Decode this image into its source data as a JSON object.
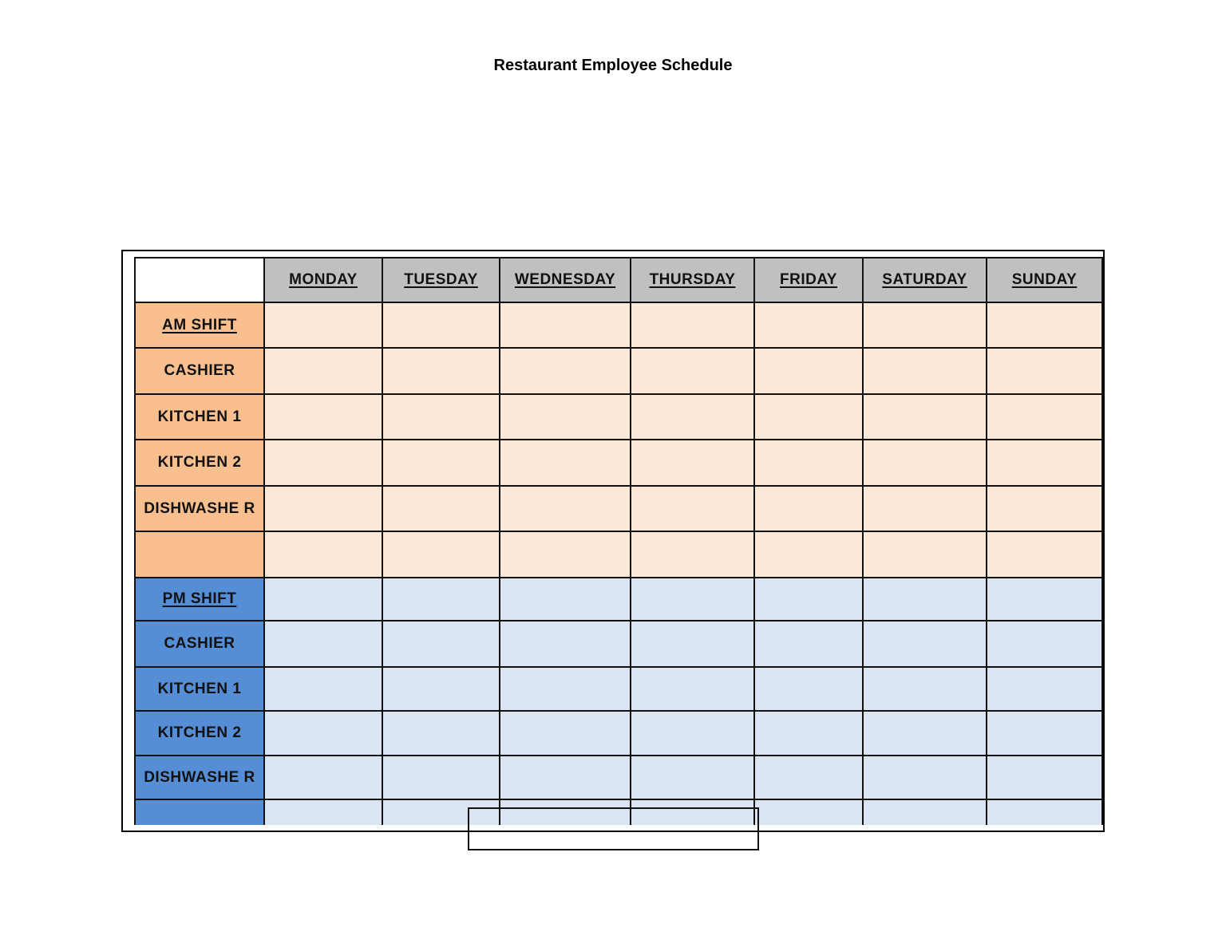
{
  "title": "Restaurant Employee Schedule",
  "days": [
    "MONDAY",
    "TUESDAY",
    "WEDNESDAY",
    "THURSDAY",
    "FRIDAY",
    "SATURDAY",
    "SUNDAY"
  ],
  "am_shift": {
    "header": "AM SHIFT",
    "roles": [
      "CASHIER",
      "KITCHEN 1",
      "KITCHEN 2",
      "DISHWASHE R",
      ""
    ]
  },
  "pm_shift": {
    "header": "PM SHIFT",
    "roles": [
      "CASHIER",
      "KITCHEN 1",
      "KITCHEN 2",
      "DISHWASHE R",
      ""
    ]
  },
  "colors": {
    "header_bg": "#c0c0c0",
    "am_label": "#f9bf8f",
    "am_cell": "#fde9d9",
    "pm_label": "#558ed5",
    "pm_cell": "#dbe5f1"
  }
}
